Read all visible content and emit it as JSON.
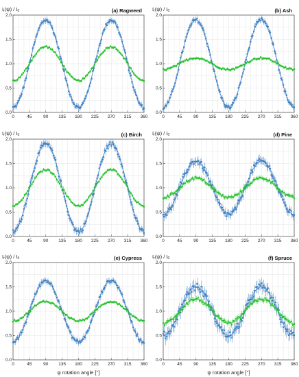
{
  "colors": {
    "blue": "#3f7fc1",
    "green": "#22c02a",
    "frame": "#555555",
    "grid": "#e4e4e4"
  },
  "chart_data": [
    {
      "type": "line",
      "title": "(a) Ragweed",
      "ylabel": "I_r(ψ) / I_0",
      "xlabel": "",
      "x_ticks": [
        0,
        45,
        90,
        135,
        180,
        225,
        270,
        315,
        360
      ],
      "y_ticks": [
        0.0,
        0.5,
        1.0,
        1.5,
        2.0
      ],
      "xlim": [
        0,
        360
      ],
      "ylim": [
        0,
        2.0
      ],
      "grid": true,
      "series": [
        {
          "color": "blue",
          "mean": 1.0,
          "amplitude": 0.9,
          "noise": 0.04
        },
        {
          "color": "green",
          "mean": 1.0,
          "amplitude": 0.35,
          "noise": 0.02
        }
      ]
    },
    {
      "type": "line",
      "title": "(b) Ash",
      "ylabel": "I_r(ψ) / I_0",
      "xlabel": "",
      "x_ticks": [
        0,
        45,
        90,
        135,
        180,
        225,
        270,
        315,
        360
      ],
      "y_ticks": [
        0.0,
        0.5,
        1.0,
        1.5,
        2.0
      ],
      "xlim": [
        0,
        360
      ],
      "ylim": [
        0,
        2.0
      ],
      "grid": true,
      "series": [
        {
          "color": "blue",
          "mean": 1.0,
          "amplitude": 0.9,
          "noise": 0.04
        },
        {
          "color": "green",
          "mean": 1.0,
          "amplitude": 0.12,
          "noise": 0.02
        }
      ]
    },
    {
      "type": "line",
      "title": "(c) Birch",
      "ylabel": "I_r(ψ) / I_0",
      "xlabel": "",
      "x_ticks": [
        0,
        45,
        90,
        135,
        180,
        225,
        270,
        315,
        360
      ],
      "y_ticks": [
        0.0,
        0.5,
        1.0,
        1.5,
        2.0
      ],
      "xlim": [
        0,
        360
      ],
      "ylim": [
        0,
        2.0
      ],
      "grid": true,
      "series": [
        {
          "color": "blue",
          "mean": 1.0,
          "amplitude": 0.9,
          "noise": 0.05
        },
        {
          "color": "green",
          "mean": 1.0,
          "amplitude": 0.37,
          "noise": 0.02
        }
      ]
    },
    {
      "type": "line",
      "title": "(d) Pine",
      "ylabel": "I_r(ψ) / I_0",
      "xlabel": "",
      "x_ticks": [
        0,
        45,
        90,
        135,
        180,
        225,
        270,
        315,
        360
      ],
      "y_ticks": [
        0.0,
        0.5,
        1.0,
        1.5,
        2.0
      ],
      "xlim": [
        0,
        360
      ],
      "ylim": [
        0,
        2.0
      ],
      "grid": true,
      "series": [
        {
          "color": "blue",
          "mean": 1.0,
          "amplitude": 0.55,
          "noise": 0.06
        },
        {
          "color": "green",
          "mean": 1.0,
          "amplitude": 0.2,
          "noise": 0.03
        }
      ]
    },
    {
      "type": "line",
      "title": "(e) Cypress",
      "ylabel": "I_r(ψ) / I_0",
      "xlabel": "ψ rotation angle [°]",
      "x_ticks": [
        0,
        45,
        90,
        135,
        180,
        225,
        270,
        315,
        360
      ],
      "y_ticks": [
        0.0,
        0.5,
        1.0,
        1.5,
        2.0
      ],
      "xlim": [
        0,
        360
      ],
      "ylim": [
        0,
        2.0
      ],
      "grid": true,
      "series": [
        {
          "color": "blue",
          "mean": 1.0,
          "amplitude": 0.63,
          "noise": 0.04
        },
        {
          "color": "green",
          "mean": 1.0,
          "amplitude": 0.2,
          "noise": 0.02
        }
      ]
    },
    {
      "type": "line",
      "title": "(f) Spruce",
      "ylabel": "I_r(ψ) / I_0",
      "xlabel": "ψ rotation angle [°]",
      "x_ticks": [
        0,
        45,
        90,
        135,
        180,
        225,
        270,
        315,
        360
      ],
      "y_ticks": [
        0.0,
        0.5,
        1.0,
        1.5,
        2.0
      ],
      "xlim": [
        0,
        360
      ],
      "ylim": [
        0,
        2.0
      ],
      "grid": true,
      "series": [
        {
          "color": "blue",
          "mean": 1.0,
          "amplitude": 0.5,
          "noise": 0.08
        },
        {
          "color": "green",
          "mean": 1.0,
          "amplitude": 0.25,
          "noise": 0.04
        }
      ]
    }
  ]
}
